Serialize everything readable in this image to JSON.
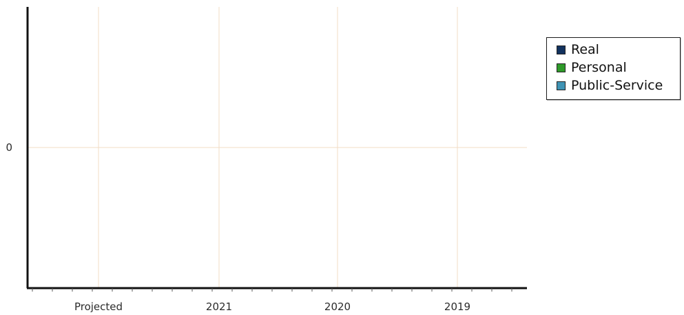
{
  "chart_data": {
    "type": "bar",
    "title": "",
    "xlabel": "",
    "ylabel": "",
    "categories": [
      "Projected",
      "2021",
      "2020",
      "2019"
    ],
    "y_ticks": [
      "0"
    ],
    "ylim": [
      -1,
      1
    ],
    "grid": true,
    "legend_position": "right",
    "series": [
      {
        "name": "Real",
        "color": "#12325e",
        "values": [
          0,
          0,
          0,
          0
        ]
      },
      {
        "name": "Personal",
        "color": "#2f9a2a",
        "values": [
          0,
          0,
          0,
          0
        ]
      },
      {
        "name": "Public-Service",
        "color": "#3f93b4",
        "values": [
          0,
          0,
          0,
          0
        ]
      }
    ],
    "gridline_color": "#f2dcc4",
    "axis_color": "#111111"
  }
}
